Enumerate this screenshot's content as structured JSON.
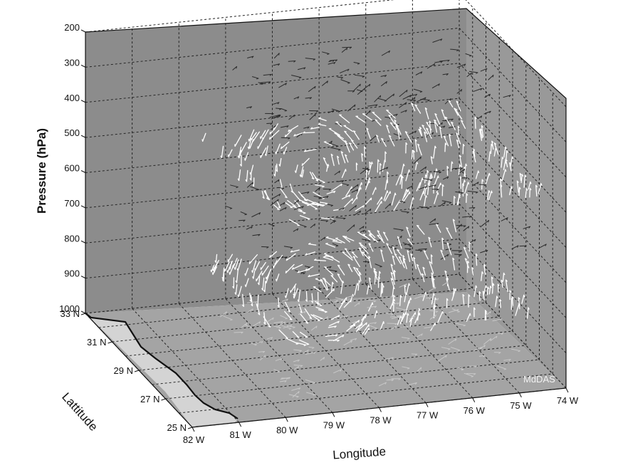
{
  "chart_data": {
    "type": "scatter",
    "subtype": "3d-wind-vector-field",
    "title": "",
    "xlabel": "Longitude",
    "ylabel": "Lattitude",
    "zlabel": "Pressure (hPa)",
    "x_ticks": [
      "82 W",
      "81 W",
      "80 W",
      "79 W",
      "78 W",
      "77 W",
      "76 W",
      "75 W",
      "74 W"
    ],
    "y_ticks": [
      "25 N",
      "27 N",
      "29 N",
      "31 N",
      "33 N"
    ],
    "z_ticks": [
      "200",
      "300",
      "400",
      "500",
      "600",
      "700",
      "800",
      "900",
      "1000"
    ],
    "xlim": [
      -82,
      -74
    ],
    "ylim": [
      25,
      33
    ],
    "zlim": [
      1000,
      200
    ],
    "z_reversed": true,
    "grid": true,
    "annotation": "MdDAS",
    "series": [
      {
        "pressure_hPa": 300,
        "vector_color": "dark"
      },
      {
        "pressure_hPa": 500,
        "vector_color": "white",
        "pattern": "cyclonic circulation"
      },
      {
        "pressure_hPa": 650,
        "vector_color": "dark"
      },
      {
        "pressure_hPa": 850,
        "vector_color": "white",
        "pattern": "cyclonic circulation"
      },
      {
        "pressure_hPa": 1000,
        "vector_color": "light"
      }
    ],
    "colors": {
      "wall_back": "#8c8c8c",
      "wall_side": "#9a9a9a",
      "floor": "#a5a5a5",
      "land": "#d4d4d4",
      "coastline": "#111111"
    }
  }
}
